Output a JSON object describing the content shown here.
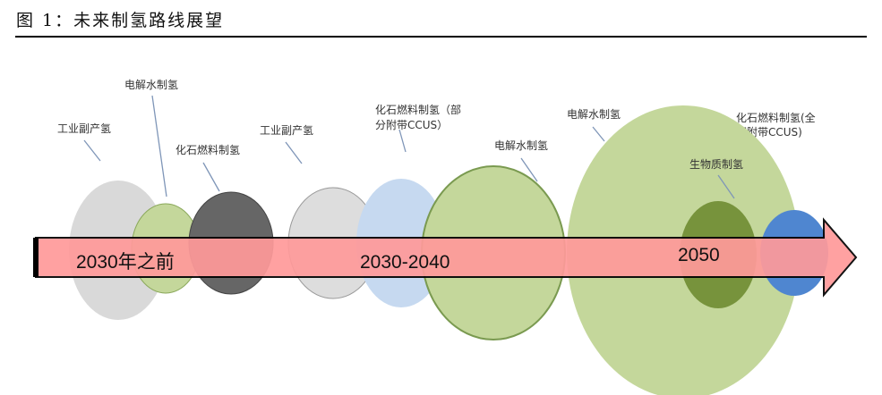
{
  "figure_title": "图 1：未来制氢路线展望",
  "colors": {
    "arrow": "#ff9a9a",
    "light_green": "#c4d79b",
    "dark_green": "#77933c",
    "dark_gray": "#666666",
    "light_gray": "#d9d9d9",
    "light_blue": "#c6d9f0",
    "blue": "#4f86d0"
  },
  "periods": [
    "2030年之前",
    "2030-2040",
    "2050"
  ],
  "labels": {
    "p1_industrial": "工业副产氢",
    "p1_electrolysis": "电解水制氢",
    "p1_fossil": "化石燃料制氢",
    "p2_industrial": "工业副产氢",
    "p2_fossil_l1": "化石燃料制氢（部",
    "p2_fossil_l2": "分附带CCUS）",
    "p2_electrolysis": "电解水制氢",
    "p3_electrolysis": "电解水制氢",
    "p3_fossil_l1": "化石燃料制氢(全",
    "p3_fossil_l2": "部附带CCUS)",
    "p3_biomass": "生物质制氢"
  }
}
